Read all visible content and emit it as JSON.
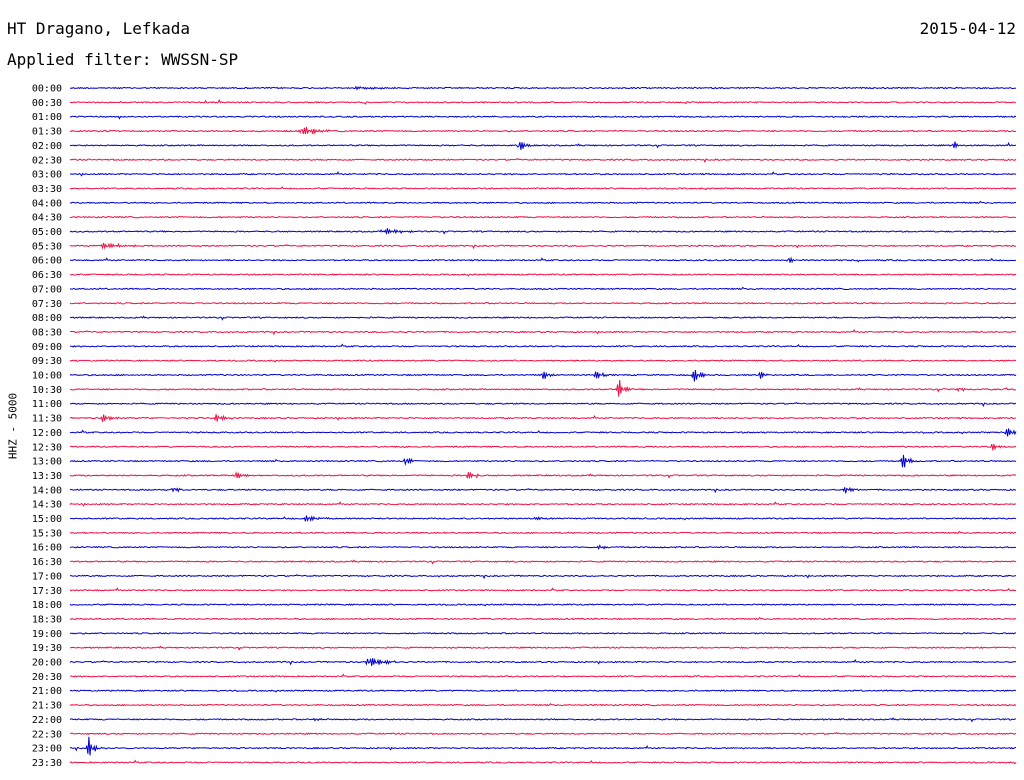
{
  "header": {
    "station": "HT Dragano, Lefkada",
    "date": "2015-04-12",
    "filter_label": "Applied filter: WWSSN-SP"
  },
  "chart_data": {
    "type": "line",
    "title": "HT Dragano, Lefkada",
    "ylabel": "HHZ - 5000",
    "row_labels": [
      "00:00",
      "00:30",
      "01:00",
      "01:30",
      "02:00",
      "02:30",
      "03:00",
      "03:30",
      "04:00",
      "04:30",
      "05:00",
      "05:30",
      "06:00",
      "06:30",
      "07:00",
      "07:30",
      "08:00",
      "08:30",
      "09:00",
      "09:30",
      "10:00",
      "10:30",
      "11:00",
      "11:30",
      "12:00",
      "12:30",
      "13:00",
      "13:30",
      "14:00",
      "14:30",
      "15:00",
      "15:30",
      "16:00",
      "16:30",
      "17:00",
      "17:30",
      "18:00",
      "18:30",
      "19:00",
      "19:30",
      "20:00",
      "20:30",
      "21:00",
      "21:30",
      "22:00",
      "22:30",
      "23:00",
      "23:30"
    ],
    "colors": [
      "#0000cc",
      "#ee1144"
    ],
    "row_minutes": 30,
    "events": [
      {
        "row": 0,
        "t": 0.3,
        "amp": 0.15,
        "dur": 0.065
      },
      {
        "row": 3,
        "t": 0.245,
        "amp": 0.6,
        "dur": 0.03
      },
      {
        "row": 4,
        "t": 0.475,
        "amp": 0.7,
        "dur": 0.012
      },
      {
        "row": 4,
        "t": 0.935,
        "amp": 0.6,
        "dur": 0.004
      },
      {
        "row": 10,
        "t": 0.335,
        "amp": 0.35,
        "dur": 0.03
      },
      {
        "row": 11,
        "t": 0.035,
        "amp": 0.3,
        "dur": 0.045
      },
      {
        "row": 12,
        "t": 0.76,
        "amp": 0.35,
        "dur": 0.01
      },
      {
        "row": 20,
        "t": 0.5,
        "amp": 0.5,
        "dur": 0.012
      },
      {
        "row": 20,
        "t": 0.555,
        "amp": 0.6,
        "dur": 0.015
      },
      {
        "row": 20,
        "t": 0.66,
        "amp": 0.8,
        "dur": 0.015
      },
      {
        "row": 20,
        "t": 0.73,
        "amp": 0.5,
        "dur": 0.008
      },
      {
        "row": 21,
        "t": 0.58,
        "amp": 0.9,
        "dur": 0.015
      },
      {
        "row": 21,
        "t": 0.94,
        "amp": 0.3,
        "dur": 0.01
      },
      {
        "row": 23,
        "t": 0.035,
        "amp": 0.4,
        "dur": 0.02
      },
      {
        "row": 23,
        "t": 0.155,
        "amp": 0.4,
        "dur": 0.02
      },
      {
        "row": 24,
        "t": 0.99,
        "amp": 0.5,
        "dur": 0.02
      },
      {
        "row": 25,
        "t": 0.975,
        "amp": 0.5,
        "dur": 0.012
      },
      {
        "row": 26,
        "t": 0.355,
        "amp": 0.7,
        "dur": 0.01
      },
      {
        "row": 26,
        "t": 0.88,
        "amp": 0.8,
        "dur": 0.015
      },
      {
        "row": 27,
        "t": 0.175,
        "amp": 0.45,
        "dur": 0.02
      },
      {
        "row": 27,
        "t": 0.42,
        "amp": 0.6,
        "dur": 0.012
      },
      {
        "row": 28,
        "t": 0.11,
        "amp": 0.45,
        "dur": 0.008
      },
      {
        "row": 28,
        "t": 0.82,
        "amp": 0.35,
        "dur": 0.015
      },
      {
        "row": 30,
        "t": 0.25,
        "amp": 0.35,
        "dur": 0.025
      },
      {
        "row": 30,
        "t": 0.49,
        "amp": 0.2,
        "dur": 0.02
      },
      {
        "row": 32,
        "t": 0.56,
        "amp": 0.35,
        "dur": 0.01
      },
      {
        "row": 40,
        "t": 0.315,
        "amp": 0.6,
        "dur": 0.03
      },
      {
        "row": 44,
        "t": 0.26,
        "amp": 0.2,
        "dur": 0.008
      },
      {
        "row": 46,
        "t": 0.02,
        "amp": 1.0,
        "dur": 0.015
      }
    ]
  }
}
